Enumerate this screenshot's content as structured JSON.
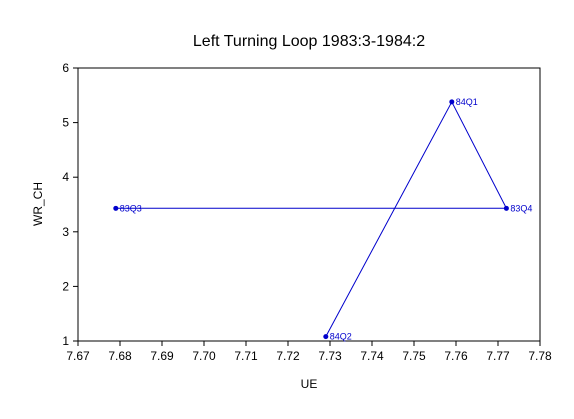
{
  "chart_data": {
    "type": "line",
    "title": "Left Turning Loop 1983:3-1984:2",
    "xlabel": "UE",
    "ylabel": "WR_CH",
    "xlim": [
      7.67,
      7.78
    ],
    "ylim": [
      1,
      6
    ],
    "xticks": [
      7.67,
      7.68,
      7.69,
      7.7,
      7.71,
      7.72,
      7.73,
      7.74,
      7.75,
      7.76,
      7.77,
      7.78
    ],
    "xtick_labels": [
      "7.67",
      "7.68",
      "7.69",
      "7.70",
      "7.71",
      "7.72",
      "7.73",
      "7.74",
      "7.75",
      "7.76",
      "7.77",
      "7.78"
    ],
    "yticks": [
      1,
      2,
      3,
      4,
      5,
      6
    ],
    "ytick_labels": [
      "1",
      "2",
      "3",
      "4",
      "5",
      "6"
    ],
    "grid": false,
    "color": "#0000cc",
    "series": [
      {
        "points": [
          {
            "label": "83Q3",
            "x": 7.679,
            "y": 3.43
          },
          {
            "label": "83Q4",
            "x": 7.772,
            "y": 3.43
          },
          {
            "label": "84Q1",
            "x": 7.759,
            "y": 5.38
          },
          {
            "label": "84Q2",
            "x": 7.729,
            "y": 1.08
          }
        ]
      }
    ]
  }
}
